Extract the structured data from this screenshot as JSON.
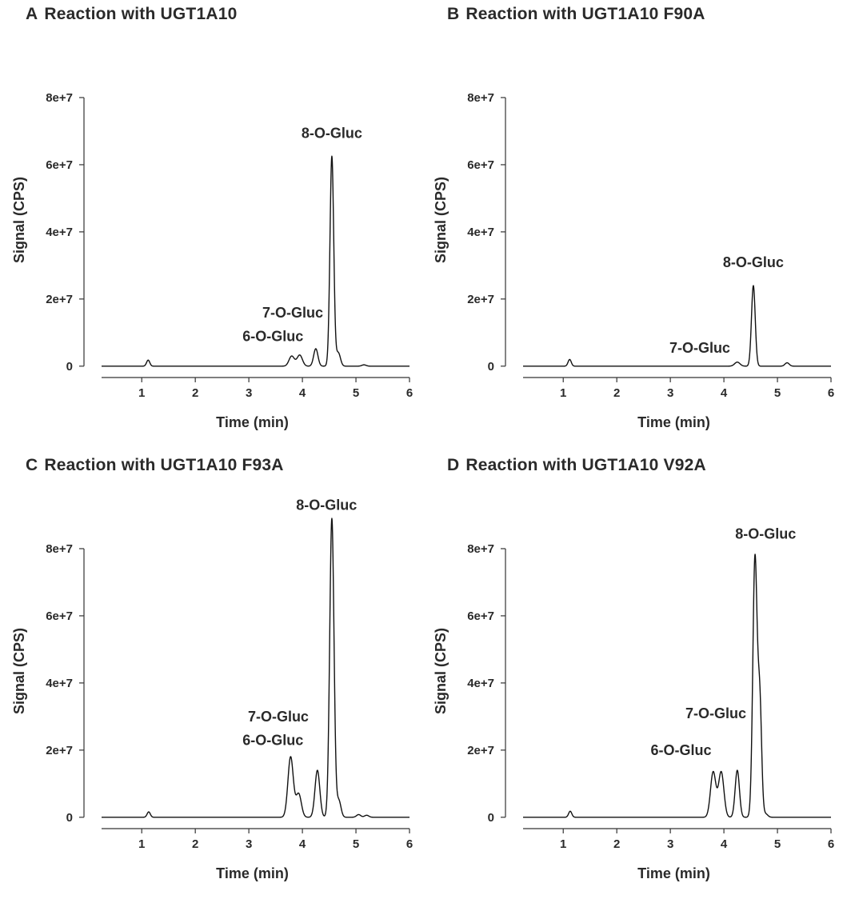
{
  "chart_data": [
    {
      "id": "A",
      "type": "line",
      "letter": "A",
      "title": "Reaction with UGT1A10",
      "xlabel": "Time (min)",
      "ylabel": "Signal (CPS)",
      "xlim": [
        0.25,
        6
      ],
      "ylim": [
        -1000000,
        90000000
      ],
      "xticks": [
        1,
        2,
        3,
        4,
        5,
        6
      ],
      "xtick_labels": [
        "1",
        "2",
        "3",
        "4",
        "5",
        "6"
      ],
      "yticks": [
        0,
        20000000,
        40000000,
        60000000,
        80000000
      ],
      "ytick_labels": [
        "0",
        "2e+7",
        "4e+7",
        "6e+7",
        "8e+7"
      ],
      "grid": false,
      "baseline": 0,
      "peaks": [
        {
          "t": 1.12,
          "h": 1800000,
          "w": 0.03
        },
        {
          "t": 3.8,
          "h": 3000000,
          "w": 0.05
        },
        {
          "t": 3.95,
          "h": 3300000,
          "w": 0.05
        },
        {
          "t": 4.25,
          "h": 5200000,
          "w": 0.04
        },
        {
          "t": 4.55,
          "h": 62500000,
          "w": 0.035
        },
        {
          "t": 4.67,
          "h": 4000000,
          "w": 0.04
        },
        {
          "t": 5.15,
          "h": 400000,
          "w": 0.04
        }
      ],
      "annotations": [
        {
          "text": "8-O-Gluc",
          "x": 4.55,
          "y": 68000000
        },
        {
          "text": "7-O-Gluc",
          "x": 3.82,
          "y": 14500000
        },
        {
          "text": "6-O-Gluc",
          "x": 3.45,
          "y": 7500000
        }
      ]
    },
    {
      "id": "B",
      "type": "line",
      "letter": "B",
      "title": "Reaction with UGT1A10 F90A",
      "xlabel": "Time (min)",
      "ylabel": "Signal (CPS)",
      "xlim": [
        0.25,
        6
      ],
      "ylim": [
        -1000000,
        90000000
      ],
      "xticks": [
        1,
        2,
        3,
        4,
        5,
        6
      ],
      "xtick_labels": [
        "1",
        "2",
        "3",
        "4",
        "5",
        "6"
      ],
      "yticks": [
        0,
        20000000,
        40000000,
        60000000,
        80000000
      ],
      "ytick_labels": [
        "0",
        "2e+7",
        "4e+7",
        "6e+7",
        "8e+7"
      ],
      "grid": false,
      "baseline": 0,
      "peaks": [
        {
          "t": 1.12,
          "h": 2000000,
          "w": 0.03
        },
        {
          "t": 4.25,
          "h": 1200000,
          "w": 0.05
        },
        {
          "t": 4.55,
          "h": 24000000,
          "w": 0.035
        },
        {
          "t": 5.18,
          "h": 1000000,
          "w": 0.04
        }
      ],
      "annotations": [
        {
          "text": "8-O-Gluc",
          "x": 4.55,
          "y": 29500000
        },
        {
          "text": "7-O-Gluc",
          "x": 3.55,
          "y": 4000000
        }
      ]
    },
    {
      "id": "C",
      "type": "line",
      "letter": "C",
      "title": "Reaction with UGT1A10 F93A",
      "xlabel": "Time (min)",
      "ylabel": "Signal (CPS)",
      "xlim": [
        0.25,
        6
      ],
      "ylim": [
        -1000000,
        90000000
      ],
      "xticks": [
        1,
        2,
        3,
        4,
        5,
        6
      ],
      "xtick_labels": [
        "1",
        "2",
        "3",
        "4",
        "5",
        "6"
      ],
      "yticks": [
        0,
        20000000,
        40000000,
        60000000,
        80000000
      ],
      "ytick_labels": [
        "0",
        "2e+7",
        "4e+7",
        "6e+7",
        "8e+7"
      ],
      "grid": false,
      "baseline": 0,
      "peaks": [
        {
          "t": 1.13,
          "h": 1600000,
          "w": 0.03
        },
        {
          "t": 3.78,
          "h": 18000000,
          "w": 0.05
        },
        {
          "t": 3.93,
          "h": 7000000,
          "w": 0.05
        },
        {
          "t": 4.28,
          "h": 14000000,
          "w": 0.045
        },
        {
          "t": 4.55,
          "h": 89000000,
          "w": 0.04
        },
        {
          "t": 4.68,
          "h": 5000000,
          "w": 0.04
        },
        {
          "t": 5.05,
          "h": 800000,
          "w": 0.04
        },
        {
          "t": 5.2,
          "h": 600000,
          "w": 0.04
        }
      ],
      "annotations": [
        {
          "text": "8-O-Gluc",
          "x": 4.45,
          "y": 91500000
        },
        {
          "text": "7-O-Gluc",
          "x": 3.55,
          "y": 28500000
        },
        {
          "text": "6-O-Gluc",
          "x": 3.45,
          "y": 21500000
        }
      ]
    },
    {
      "id": "D",
      "type": "line",
      "letter": "D",
      "title": "Reaction with UGT1A10 V92A",
      "xlabel": "Time (min)",
      "ylabel": "Signal (CPS)",
      "xlim": [
        0.25,
        6
      ],
      "ylim": [
        -1000000,
        90000000
      ],
      "xticks": [
        1,
        2,
        3,
        4,
        5,
        6
      ],
      "xtick_labels": [
        "1",
        "2",
        "3",
        "4",
        "5",
        "6"
      ],
      "yticks": [
        0,
        20000000,
        40000000,
        60000000,
        80000000
      ],
      "ytick_labels": [
        "0",
        "2e+7",
        "4e+7",
        "6e+7",
        "8e+7"
      ],
      "grid": false,
      "baseline": 0,
      "peaks": [
        {
          "t": 1.13,
          "h": 1800000,
          "w": 0.03
        },
        {
          "t": 3.8,
          "h": 13500000,
          "w": 0.05
        },
        {
          "t": 3.95,
          "h": 13500000,
          "w": 0.05
        },
        {
          "t": 4.25,
          "h": 14000000,
          "w": 0.04
        },
        {
          "t": 4.58,
          "h": 77000000,
          "w": 0.04
        },
        {
          "t": 4.67,
          "h": 34000000,
          "w": 0.035
        },
        {
          "t": 4.78,
          "h": 1000000,
          "w": 0.04
        }
      ],
      "annotations": [
        {
          "text": "8-O-Gluc",
          "x": 4.78,
          "y": 83000000
        },
        {
          "text": "7-O-Gluc",
          "x": 3.85,
          "y": 29500000
        },
        {
          "text": "6-O-Gluc",
          "x": 3.2,
          "y": 18500000
        }
      ]
    }
  ]
}
